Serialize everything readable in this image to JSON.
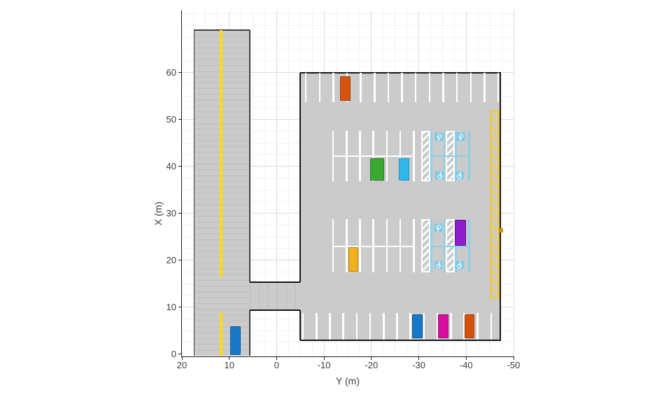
{
  "figure": {
    "background": "#ffffff"
  },
  "axes": {
    "xlabel": "Y (m)",
    "ylabel": "X (m)",
    "x_ticks": [
      20,
      10,
      0,
      -10,
      -20,
      -30,
      -40,
      -50
    ],
    "y_ticks": [
      0,
      10,
      20,
      30,
      40,
      50,
      60
    ],
    "xlim": [
      20,
      -50
    ],
    "ylim": [
      -0.49,
      73.21
    ],
    "x_reversed": true,
    "grid": "on",
    "minor_grid": "on",
    "minor_step": 2.5,
    "axis_color": "#1c1c1c",
    "tick_text_color": "#3c3c3c",
    "grid_major_color": "#dcdcdc",
    "grid_minor_color": "#e7e7e7"
  },
  "colors": {
    "pavement": "#cbcbcb",
    "pavement_mesh": "#bdbdbd",
    "road_edge": "#3f3f3f",
    "lot_edge": "#161616",
    "lane_yellow": "#ffd90f",
    "line_white": "#ffffff",
    "accessible_blue": "#8fcfe8",
    "icon_blue": "#7ec9e8",
    "icon_glyph": "#ffffff",
    "hazard_stripe": "#f3cf52",
    "hazard_border": "#f0c83c"
  },
  "chart_data": {
    "type": "scatter",
    "title": "",
    "xlabel": "Y (m)",
    "ylabel": "X (m)",
    "xlim": [
      20,
      -50
    ],
    "ylim": [
      -0.5,
      73.2
    ],
    "road": {
      "y_left": 17.47,
      "y_right": 5.66,
      "x_top": 69.1,
      "x_bottom": -0.34,
      "lane_marking_y": 11.75,
      "lane_marking_segments_x": [
        [
          69.1,
          16.4
        ],
        [
          8.9,
          -0.34
        ]
      ]
    },
    "entrance": {
      "y": [
        5.66,
        -4.9
      ],
      "x": [
        15.33,
        9.36
      ]
    },
    "parking_lot": {
      "y": [
        -4.9,
        -47.37
      ],
      "x": [
        59.95,
        2.94
      ]
    },
    "no_parking_zone": {
      "y": [
        -45.03,
        -47.37
      ],
      "x": [
        51.9,
        11.75
      ]
    },
    "parking_rows": [
      {
        "id": "north-row",
        "y_start": -6.16,
        "y_step": -2.9,
        "count": 15,
        "x": [
          59.95,
          53.68
        ]
      },
      {
        "id": "mid1-top-row",
        "y_start": -11.92,
        "y_step": -2.835,
        "count": 7,
        "x": [
          47.56,
          42.19
        ]
      },
      {
        "id": "mid1-bottom-row",
        "y_start": -11.92,
        "y_step": -2.835,
        "count": 7,
        "x": [
          42.19,
          36.81
        ]
      },
      {
        "id": "mid2-top-row",
        "y_start": -11.92,
        "y_step": -2.835,
        "count": 7,
        "x": [
          28.76,
          22.94
        ]
      },
      {
        "id": "mid2-bottom-row",
        "y_start": -11.92,
        "y_step": -2.835,
        "count": 7,
        "x": [
          22.94,
          17.42
        ]
      },
      {
        "id": "south-row",
        "y_start": -5.57,
        "y_step": -2.835,
        "count": 15,
        "x": [
          8.76,
          3.09
        ]
      }
    ],
    "row_separators": [
      {
        "x": 42.19,
        "y": [
          -11.92,
          -28.93
        ]
      },
      {
        "x": 22.94,
        "y": [
          -11.92,
          -28.93
        ]
      }
    ],
    "accessible_parking": {
      "sections": [
        {
          "x_top": 47.56,
          "x_mid": 42.19,
          "x_bottom": 36.81
        },
        {
          "x_top": 28.76,
          "x_mid": 22.94,
          "x_bottom": 17.42
        }
      ],
      "hatched_aisles_y": [
        [
          -30.45,
          -32.37
        ],
        [
          -35.62,
          -37.54
        ]
      ],
      "blue_line_y": [
        -32.67,
        -35.4,
        -37.84,
        -40.64
      ],
      "icons": [
        {
          "y": -34.35,
          "x": 46.3,
          "rot": 180
        },
        {
          "y": -38.9,
          "x": 46.3,
          "rot": 180
        },
        {
          "y": -34.35,
          "x": 38.1,
          "rot": 0
        },
        {
          "y": -38.6,
          "x": 38.1,
          "rot": 0
        },
        {
          "y": -34.1,
          "x": 26.9,
          "rot": 180
        },
        {
          "y": -34.1,
          "x": 19.0,
          "rot": 0
        },
        {
          "y": -38.6,
          "x": 19.0,
          "rot": 0
        }
      ]
    },
    "edge_marker": {
      "y": -47.3,
      "x": 26.3,
      "size": 0.9,
      "color": "#c8960c"
    },
    "vehicles": [
      {
        "id": "parked-car-orange-north",
        "color": "#d4540e",
        "edge": "#a23b08",
        "y": -14.5,
        "x": 56.6,
        "w": 2.15,
        "l": 5.2
      },
      {
        "id": "parked-car-green",
        "color": "#3da935",
        "edge": "#2b7a25",
        "y": -21.2,
        "x": 39.35,
        "w": 2.9,
        "l": 4.8
      },
      {
        "id": "parked-car-cyan",
        "color": "#2eb7e8",
        "edge": "#2193bc",
        "y": -26.9,
        "x": 39.35,
        "w": 2.2,
        "l": 4.8
      },
      {
        "id": "parked-car-purple",
        "color": "#8c1fcb",
        "edge": "#5e128c",
        "y": -38.8,
        "x": 25.85,
        "w": 2.35,
        "l": 5.65
      },
      {
        "id": "parked-car-yellow",
        "color": "#efb120",
        "edge": "#bb860f",
        "y": -16.2,
        "x": 20.15,
        "w": 2.15,
        "l": 5.2
      },
      {
        "id": "parked-car-blue",
        "color": "#1878c8",
        "edge": "#0e5a98",
        "y": -29.7,
        "x": 5.9,
        "w": 2.2,
        "l": 5.1
      },
      {
        "id": "parked-car-magenta",
        "color": "#d60f9f",
        "edge": "#9e0875",
        "y": -35.2,
        "x": 5.9,
        "w": 2.2,
        "l": 5.1
      },
      {
        "id": "parked-car-orange-south",
        "color": "#d4530c",
        "edge": "#a23b08",
        "y": -40.7,
        "x": 5.9,
        "w": 2.2,
        "l": 5.1
      },
      {
        "id": "ego-car-blue-road",
        "color": "#1878c8",
        "edge": "#0e5a98",
        "y": 8.7,
        "x": 2.85,
        "w": 2.25,
        "l": 6.1
      }
    ]
  }
}
